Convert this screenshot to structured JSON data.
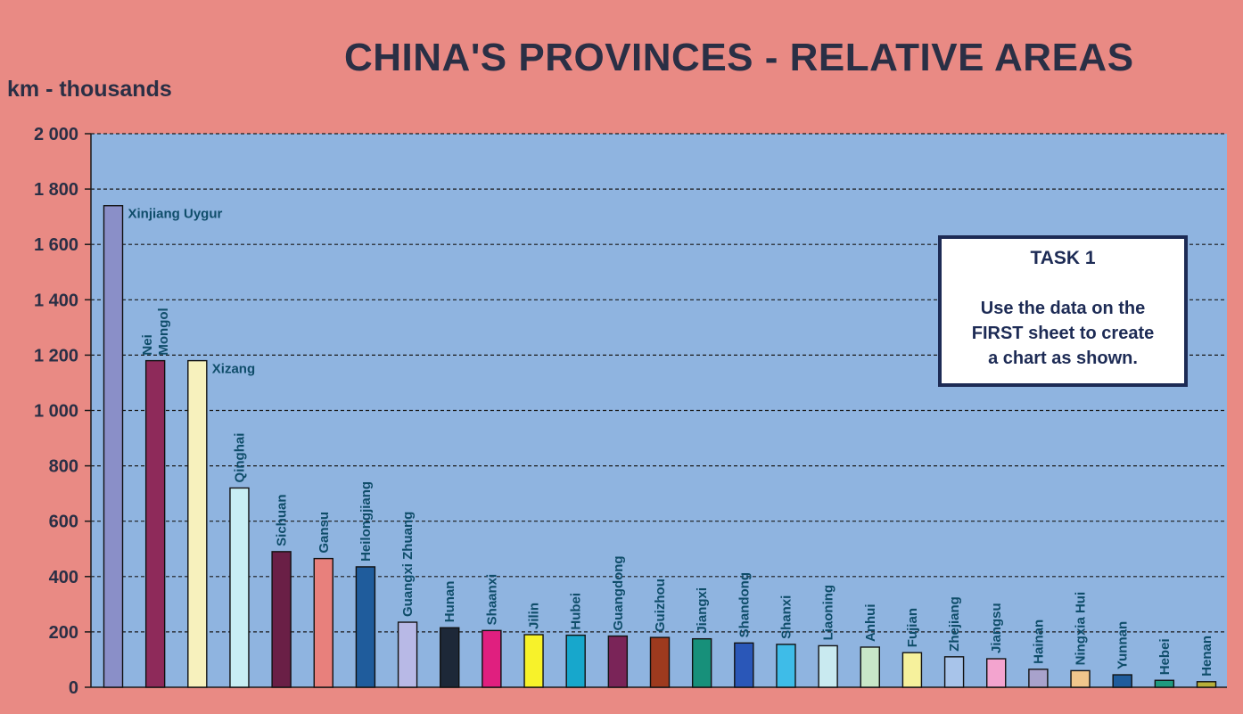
{
  "chart_data": {
    "type": "bar",
    "title": "CHINA'S PROVINCES - RELATIVE AREAS",
    "ylabel": "km - thousands",
    "ylim": [
      0,
      2000
    ],
    "yticks": [
      0,
      200,
      400,
      600,
      800,
      1000,
      1200,
      1400,
      1600,
      1800,
      2000
    ],
    "ytick_labels": [
      "0",
      "200",
      "400",
      "600",
      "800",
      "1 000",
      "1 200",
      "1 400",
      "1 600",
      "1 800",
      "2 000"
    ],
    "grid": true,
    "legend": "none",
    "categories": [
      "Xinjiang Uygur",
      "Nei Mongol",
      "Xizang",
      "Qinghai",
      "Sichuan",
      "Gansu",
      "Heilongjiang",
      "Guangxi Zhuang",
      "Hunan",
      "Shaanxi",
      "Jilin",
      "Hubei",
      "Guangdong",
      "Guizhou",
      "Jiangxi",
      "Shandong",
      "Shanxi",
      "Liaoning",
      "Anhui",
      "Fujian",
      "Zhejiang",
      "Jiangsu",
      "Hainan",
      "Ningxia Hui",
      "Yunnan",
      "Hebei",
      "Henan"
    ],
    "values": [
      1740,
      1180,
      1180,
      720,
      490,
      465,
      435,
      235,
      215,
      205,
      190,
      188,
      185,
      180,
      175,
      160,
      155,
      150,
      145,
      125,
      110,
      103,
      65,
      60,
      45,
      25,
      20
    ],
    "colors": [
      "#8a8fc8",
      "#8e2a5a",
      "#f7f1bd",
      "#c8eef4",
      "#6a1f46",
      "#e8807c",
      "#1f5c9c",
      "#b8b9e6",
      "#1d2838",
      "#e01f7f",
      "#f7f22a",
      "#17a7cc",
      "#7a2458",
      "#9e3a1e",
      "#17907a",
      "#2a57b8",
      "#3ebce8",
      "#c9eaf0",
      "#c8e6c8",
      "#f6f19c",
      "#a8c4ea",
      "#f3a4cf",
      "#a8a2cc",
      "#f0c68c",
      "#1f5c9c",
      "#1f9a7f",
      "#b8b03a"
    ]
  },
  "task_box": {
    "heading": "TASK 1",
    "line1": "Use the data on the",
    "line2": "FIRST sheet to create",
    "line3": "a chart as shown."
  }
}
